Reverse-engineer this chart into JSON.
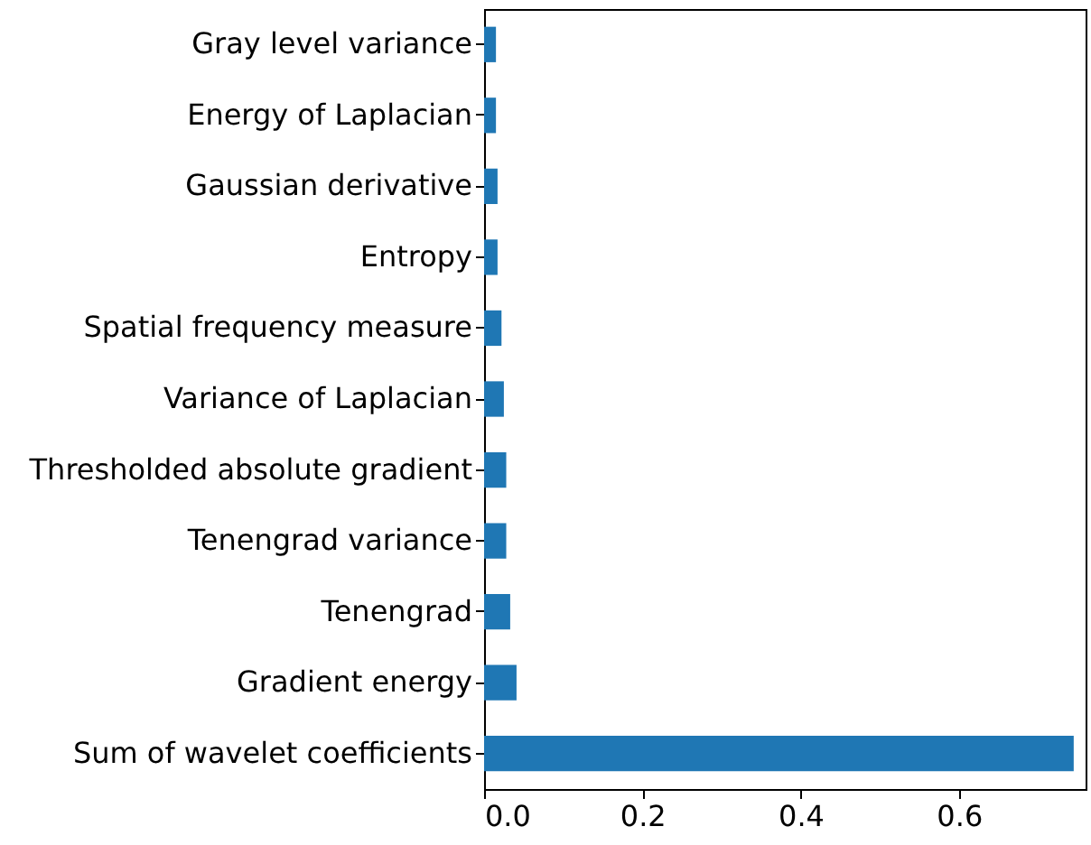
{
  "chart_data": {
    "type": "bar",
    "orientation": "horizontal",
    "categories": [
      "Gray level variance",
      "Energy of Laplacian",
      "Gaussian derivative",
      "Entropy",
      "Spatial frequency measure",
      "Variance of Laplacian",
      "Thresholded absolute gradient",
      "Tenengrad variance",
      "Tenengrad",
      "Gradient energy",
      "Sum of wavelet coefficients"
    ],
    "values": [
      0.015,
      0.015,
      0.017,
      0.017,
      0.022,
      0.025,
      0.028,
      0.028,
      0.033,
      0.041,
      0.745
    ],
    "color": "#1f77b4",
    "xlim": [
      0,
      0.76
    ],
    "xticks": [
      {
        "value": 0,
        "label": "0.0"
      },
      {
        "value": 0.2,
        "label": "0.2"
      },
      {
        "value": 0.4,
        "label": "0.4"
      },
      {
        "value": 0.6,
        "label": "0.6"
      }
    ],
    "grid": false
  }
}
